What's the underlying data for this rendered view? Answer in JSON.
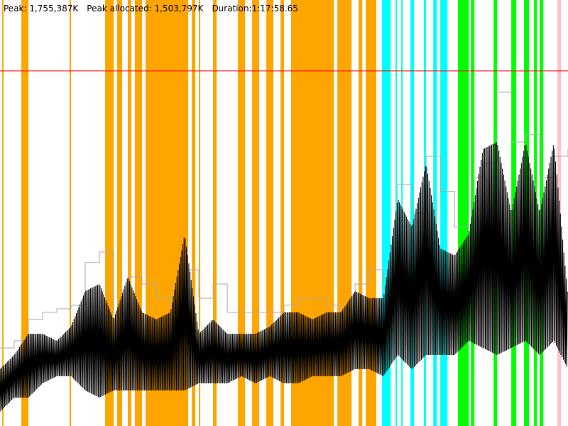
{
  "header": {
    "peak": "Peak: 1,755,387K",
    "peak_allocated": "Peak allocated: 1,503,797K",
    "duration": "Duration:1:17:58.65"
  },
  "chart_data": {
    "type": "line",
    "title": "",
    "xlabel": "",
    "ylabel": "",
    "x_unit": "seconds",
    "y_unit": "K",
    "xlim": [
      0,
      4679
    ],
    "ylim": [
      0,
      2106000
    ],
    "grid": false,
    "peak_line": {
      "value": 1755387,
      "color": "#ff0000"
    },
    "colors": {
      "heap": "#aaaaaa",
      "used": "#000000",
      "orange": "#ffa500",
      "cyan": "#00ffff",
      "green": "#00ff00",
      "pink": "#ffc0cb"
    },
    "bands": [
      {
        "type": "orange",
        "start": 18,
        "end": 29
      },
      {
        "type": "orange",
        "start": 176,
        "end": 234
      },
      {
        "type": "orange",
        "start": 573,
        "end": 585
      },
      {
        "type": "orange",
        "start": 866,
        "end": 936
      },
      {
        "type": "orange",
        "start": 965,
        "end": 1006
      },
      {
        "type": "orange",
        "start": 1053,
        "end": 1082
      },
      {
        "type": "orange",
        "start": 1111,
        "end": 1170
      },
      {
        "type": "orange",
        "start": 1199,
        "end": 1550
      },
      {
        "type": "orange",
        "start": 1580,
        "end": 1609
      },
      {
        "type": "orange",
        "start": 1638,
        "end": 1650
      },
      {
        "type": "orange",
        "start": 1755,
        "end": 1784
      },
      {
        "type": "orange",
        "start": 1960,
        "end": 2018
      },
      {
        "type": "orange",
        "start": 2077,
        "end": 2135
      },
      {
        "type": "orange",
        "start": 2194,
        "end": 2252
      },
      {
        "type": "orange",
        "start": 2311,
        "end": 2340
      },
      {
        "type": "orange",
        "start": 2398,
        "end": 2750
      },
      {
        "type": "orange",
        "start": 2779,
        "end": 2896
      },
      {
        "type": "orange",
        "start": 2954,
        "end": 2984
      },
      {
        "type": "orange",
        "start": 3013,
        "end": 3100
      },
      {
        "type": "cyan",
        "start": 3147,
        "end": 3218
      },
      {
        "type": "cyan",
        "start": 3258,
        "end": 3270
      },
      {
        "type": "cyan",
        "start": 3305,
        "end": 3317
      },
      {
        "type": "cyan",
        "start": 3381,
        "end": 3411
      },
      {
        "type": "cyan",
        "start": 3492,
        "end": 3510
      },
      {
        "type": "cyan",
        "start": 3569,
        "end": 3598
      },
      {
        "type": "cyan",
        "start": 3627,
        "end": 3686
      },
      {
        "type": "green",
        "start": 3773,
        "end": 3861
      },
      {
        "type": "green",
        "start": 3879,
        "end": 3908
      },
      {
        "type": "green",
        "start": 4066,
        "end": 4095
      },
      {
        "type": "green",
        "start": 4212,
        "end": 4253
      },
      {
        "type": "green",
        "start": 4317,
        "end": 4358
      },
      {
        "type": "green",
        "start": 4399,
        "end": 4423
      },
      {
        "type": "green",
        "start": 4446,
        "end": 4475
      },
      {
        "type": "pink",
        "start": 4592,
        "end": 4622
      }
    ],
    "x": [
      0,
      117,
      234,
      351,
      468,
      585,
      702,
      819,
      936,
      1053,
      1170,
      1287,
      1404,
      1521,
      1638,
      1755,
      1872,
      1989,
      2106,
      2223,
      2340,
      2457,
      2574,
      2691,
      2808,
      2925,
      3042,
      3159,
      3276,
      3393,
      3510,
      3627,
      3744,
      3861,
      3978,
      4095,
      4212,
      4329,
      4446,
      4563,
      4679
    ],
    "series": [
      {
        "key": "heap",
        "values": [
          386000,
          421000,
          527000,
          562000,
          579000,
          597000,
          808000,
          860000,
          562000,
          737000,
          702000,
          632000,
          597000,
          772000,
          632000,
          702000,
          562000,
          562000,
          562000,
          562000,
          597000,
          632000,
          632000,
          597000,
          527000,
          702000,
          772000,
          702000,
          1194000,
          1053000,
          1334000,
          1159000,
          983000,
          1229000,
          1299000,
          1650000,
          1404000,
          1440000,
          1229000,
          1334000,
          1369000
        ]
      },
      {
        "key": "used_max",
        "values": [
          281000,
          351000,
          456000,
          456000,
          421000,
          492000,
          667000,
          702000,
          527000,
          737000,
          562000,
          527000,
          562000,
          948000,
          456000,
          527000,
          456000,
          456000,
          456000,
          492000,
          562000,
          562000,
          527000,
          562000,
          562000,
          667000,
          632000,
          632000,
          1123000,
          983000,
          1299000,
          878000,
          843000,
          948000,
          1369000,
          1404000,
          1053000,
          1404000,
          1053000,
          1404000,
          632000
        ]
      },
      {
        "key": "used_min",
        "values": [
          70000,
          140000,
          140000,
          211000,
          246000,
          246000,
          176000,
          140000,
          176000,
          176000,
          176000,
          176000,
          176000,
          176000,
          211000,
          211000,
          211000,
          246000,
          211000,
          246000,
          211000,
          211000,
          246000,
          246000,
          246000,
          281000,
          281000,
          246000,
          351000,
          281000,
          351000,
          351000,
          351000,
          421000,
          386000,
          351000,
          386000,
          421000,
          351000,
          421000,
          281000
        ]
      }
    ]
  }
}
